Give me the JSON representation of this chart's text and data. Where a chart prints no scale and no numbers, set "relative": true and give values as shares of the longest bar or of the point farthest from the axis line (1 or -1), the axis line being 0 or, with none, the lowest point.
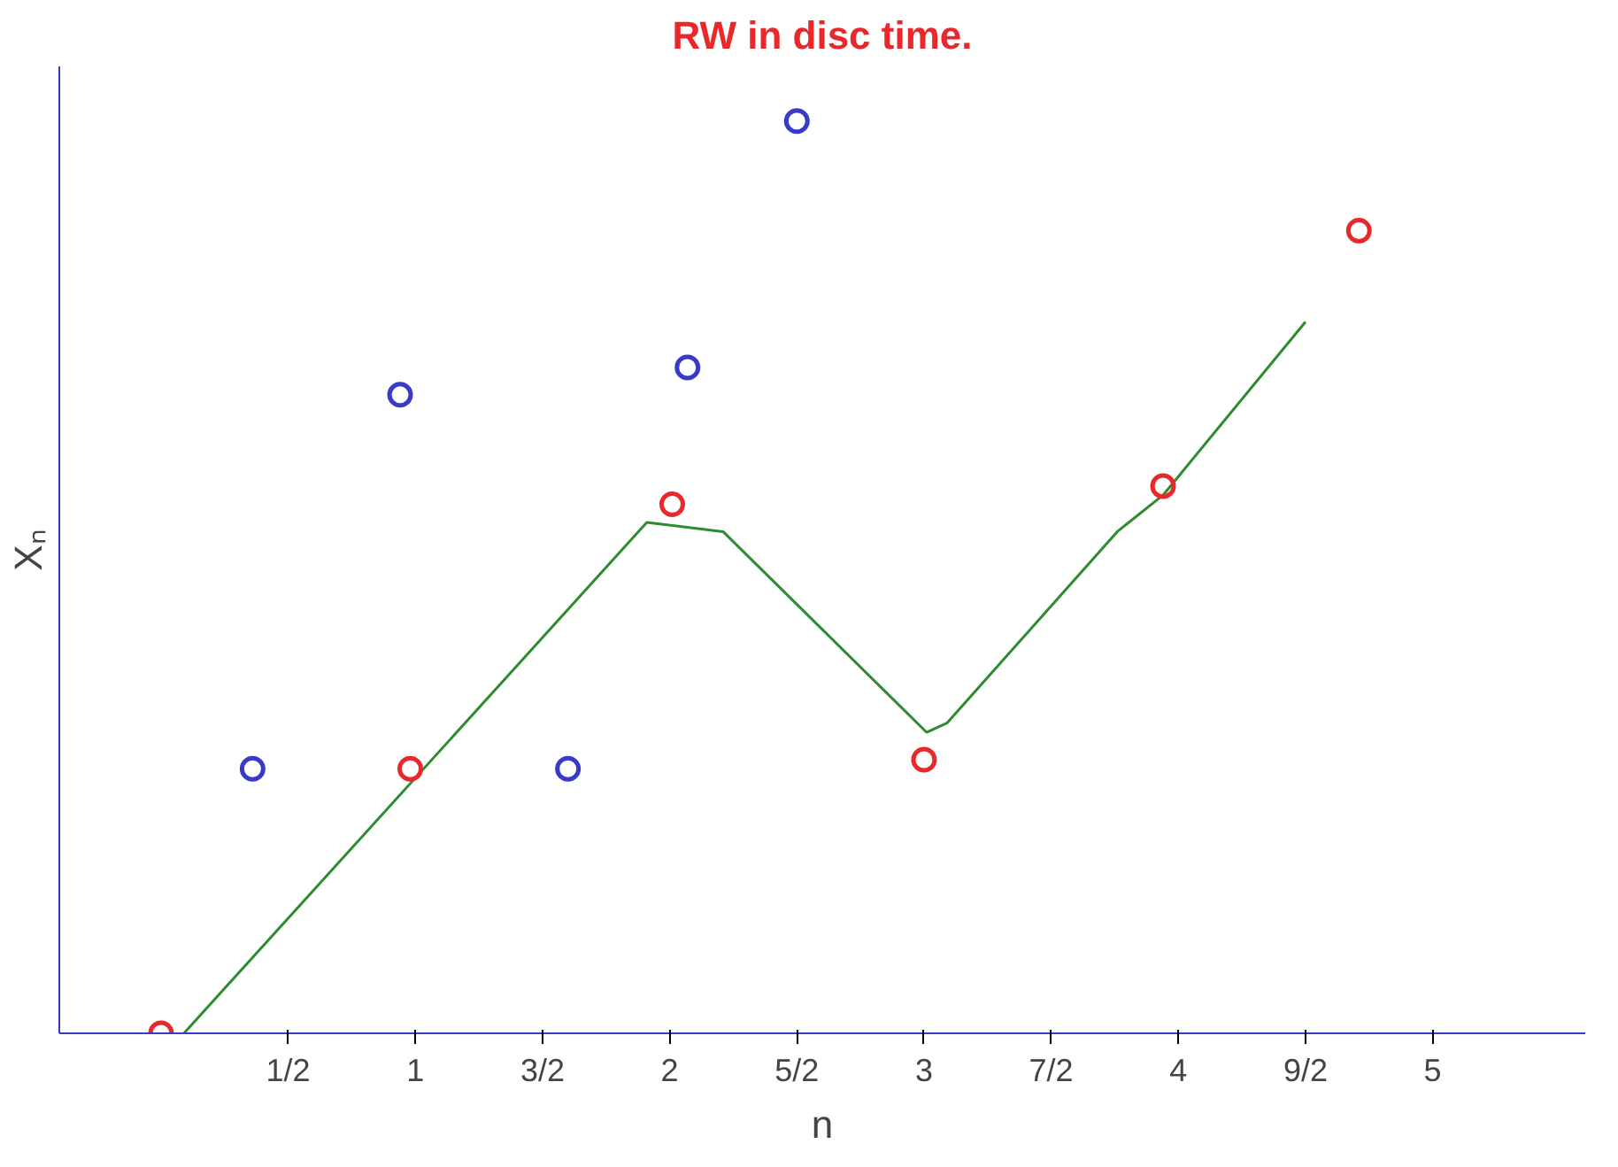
{
  "chart_data": {
    "type": "scatter",
    "title": "RW in disc time.",
    "xlabel": "n",
    "ylabel": "Xₙ",
    "relative": true,
    "marker": "circle",
    "xlim": [
      -0.4,
      5.6
    ],
    "xticks": [
      {
        "value": 0.5,
        "label": "1/2"
      },
      1,
      {
        "value": 1.5,
        "label": "3/2"
      },
      2,
      {
        "value": 2.5,
        "label": "5/2"
      },
      3,
      {
        "value": 3.5,
        "label": "7/2"
      },
      4,
      {
        "value": 4.5,
        "label": "9/2"
      },
      5
    ],
    "series": [
      {
        "type": "line",
        "marker": "none",
        "color": "#2e8b2e",
        "x": [
          0.09,
          1.91,
          2.21,
          3.01,
          3.09,
          3.76,
          3.94,
          4.5
        ],
        "values": [
          0.0,
          0.56,
          0.55,
          0.33,
          0.34,
          0.55,
          0.59,
          0.78
        ]
      },
      {
        "color": "#e8282b",
        "x": [
          0,
          0.98,
          2.01,
          3.0,
          3.94,
          4.71
        ],
        "values": [
          0.0,
          0.29,
          0.58,
          0.3,
          0.6,
          0.88
        ]
      },
      {
        "color": "#3a3ac8",
        "x": [
          0.36,
          0.94,
          1.6,
          2.07,
          2.5
        ],
        "values": [
          0.29,
          0.7,
          0.29,
          0.73,
          1.0
        ]
      }
    ]
  }
}
